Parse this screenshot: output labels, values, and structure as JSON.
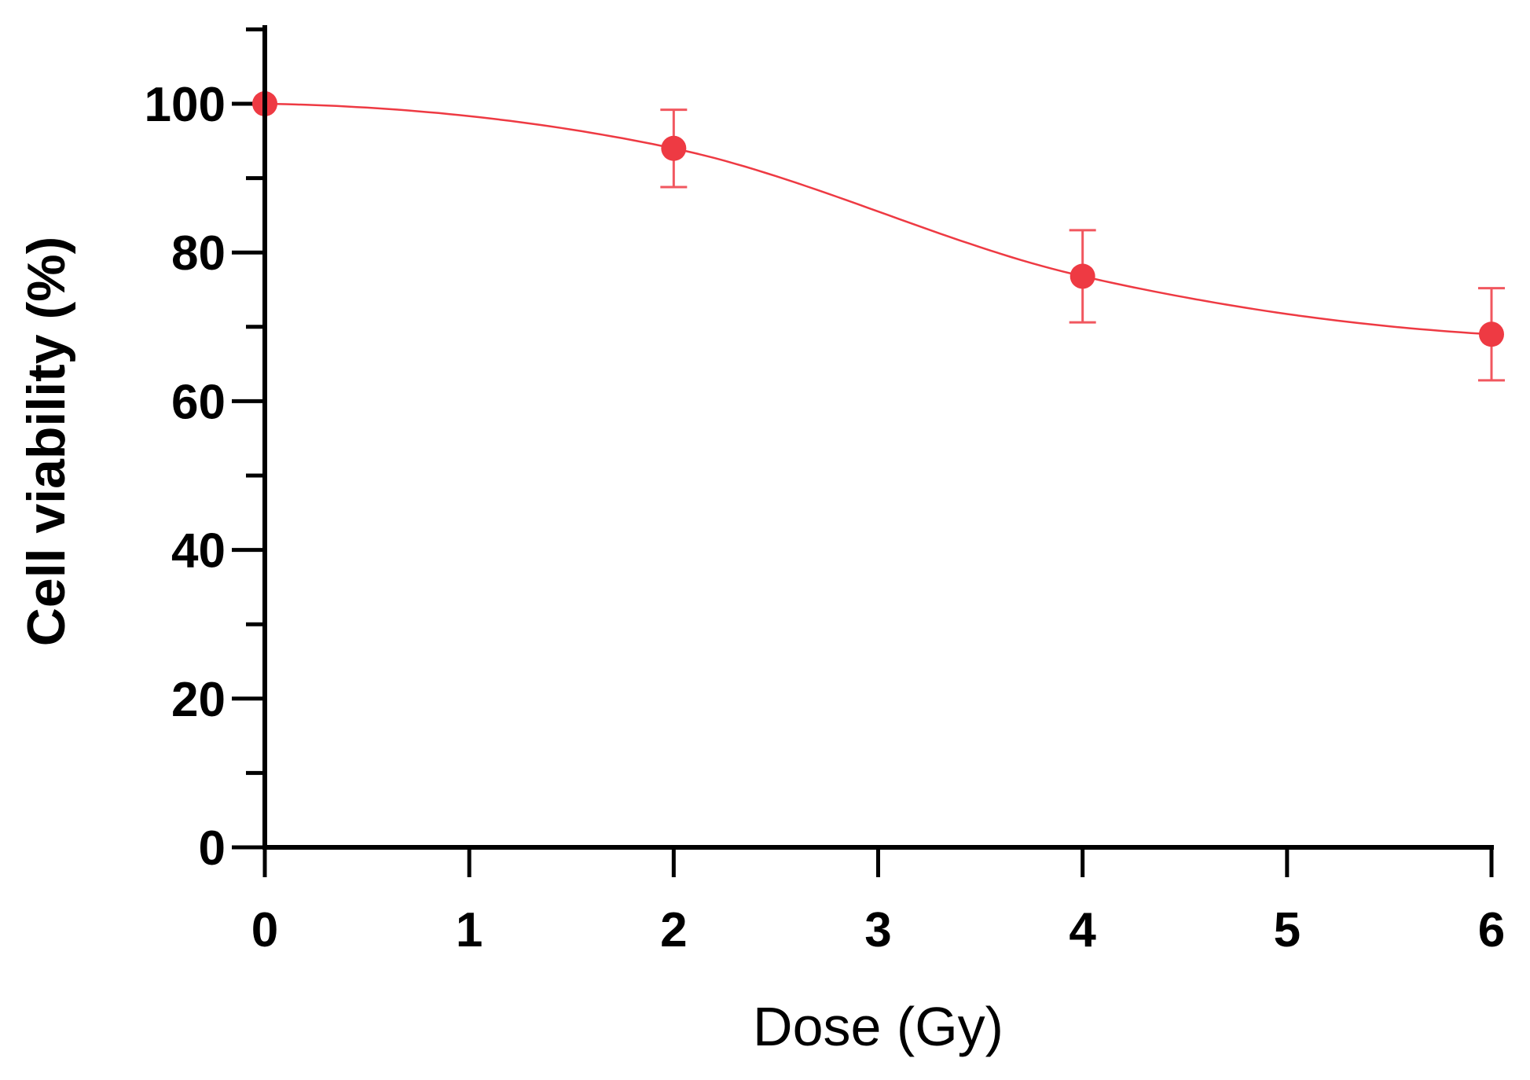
{
  "chart_data": {
    "type": "line",
    "xlabel": "Dose (Gy)",
    "ylabel": "Cell viability (%)",
    "xlim": [
      0,
      6
    ],
    "ylim": [
      0,
      110
    ],
    "x_ticks": [
      "0",
      "1",
      "2",
      "3",
      "4",
      "5",
      "6"
    ],
    "y_ticks": [
      "0",
      "20",
      "40",
      "60",
      "80",
      "100"
    ],
    "grid": false,
    "legend": "none",
    "series": [
      {
        "x": [
          0,
          2,
          4,
          6
        ],
        "y": [
          100,
          94,
          76.8,
          69
        ],
        "error": [
          0,
          5.2,
          6.2,
          6.2
        ],
        "color": "#ee3a43",
        "fit": "sigmoidal"
      }
    ]
  }
}
